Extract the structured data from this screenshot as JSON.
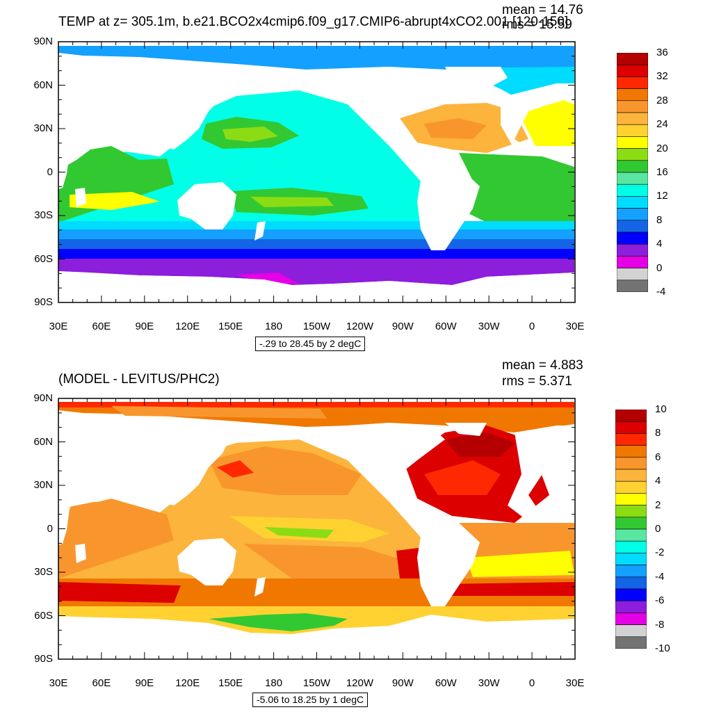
{
  "panels": [
    {
      "title": "TEMP at z= 305.1m, b.e21.BCO2x4cmip6.f09_g17.CMIP6-abrupt4xCO2.001 [120-150]",
      "mean": "mean = 14.76",
      "rms": "rms = 15.59",
      "contour_info": "-.29 to 28.45 by 2 degC",
      "lat_labels": [
        "90N",
        "60N",
        "30N",
        "0",
        "30S",
        "60S",
        "90S"
      ],
      "lon_labels": [
        "30E",
        "60E",
        "90E",
        "120E",
        "150E",
        "180",
        "150W",
        "120W",
        "90W",
        "60W",
        "30W",
        "0",
        "30E"
      ],
      "colorbar": {
        "labels": [
          "36",
          "32",
          "28",
          "24",
          "20",
          "16",
          "12",
          "8",
          "4",
          "0",
          "-4"
        ],
        "colors": [
          "#b40000",
          "#dc0000",
          "#ff2800",
          "#f07800",
          "#f8962d",
          "#fcb43c",
          "#ffd232",
          "#ffff00",
          "#8cdc14",
          "#32c832",
          "#5ae6a0",
          "#00ffe6",
          "#00dcff",
          "#14a0ff",
          "#1464e6",
          "#0000ff",
          "#8c1edc",
          "#e600e6",
          "#d2d2d2",
          "#737373"
        ]
      }
    },
    {
      "title": "(MODEL - LEVITUS/PHC2)",
      "mean": "mean = 4.883",
      "rms": "rms = 5.371",
      "contour_info": "-5.06 to 18.25 by 1 degC",
      "lat_labels": [
        "90N",
        "60N",
        "30N",
        "0",
        "30S",
        "60S",
        "90S"
      ],
      "lon_labels": [
        "30E",
        "60E",
        "90E",
        "120E",
        "150E",
        "180",
        "150W",
        "120W",
        "90W",
        "60W",
        "30W",
        "0",
        "30E"
      ],
      "colorbar": {
        "labels": [
          "10",
          "8",
          "6",
          "4",
          "2",
          "0",
          "-2",
          "-4",
          "-6",
          "-8",
          "-10"
        ],
        "colors": [
          "#b40000",
          "#dc0000",
          "#ff2800",
          "#f07800",
          "#f8962d",
          "#fcb43c",
          "#ffd232",
          "#ffff00",
          "#8cdc14",
          "#32c832",
          "#5ae6a0",
          "#00ffe6",
          "#00dcff",
          "#14a0ff",
          "#1464e6",
          "#0000ff",
          "#8c1edc",
          "#e600e6",
          "#d2d2d2",
          "#737373"
        ]
      }
    }
  ]
}
